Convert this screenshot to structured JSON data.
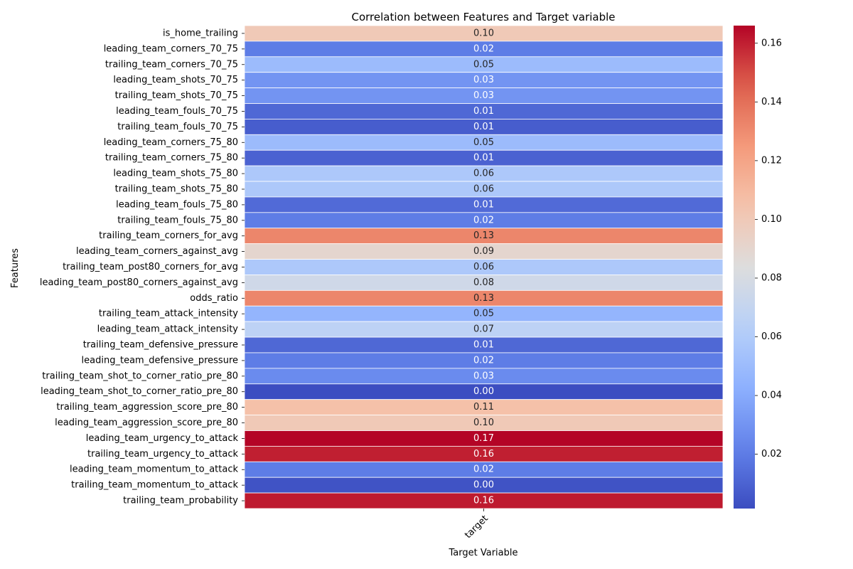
{
  "chart_data": {
    "type": "heatmap",
    "title": "Correlation between Features and Target variable",
    "xlabel": "Target Variable",
    "ylabel": "Features",
    "columns": [
      "target"
    ],
    "rows": [
      "is_home_trailing",
      "leading_team_corners_70_75",
      "trailing_team_corners_70_75",
      "leading_team_shots_70_75",
      "trailing_team_shots_70_75",
      "leading_team_fouls_70_75",
      "trailing_team_fouls_70_75",
      "leading_team_corners_75_80",
      "trailing_team_corners_75_80",
      "leading_team_shots_75_80",
      "trailing_team_shots_75_80",
      "leading_team_fouls_75_80",
      "trailing_team_fouls_75_80",
      "trailing_team_corners_for_avg",
      "leading_team_corners_against_avg",
      "trailing_team_post80_corners_for_avg",
      "leading_team_post80_corners_against_avg",
      "odds_ratio",
      "trailing_team_attack_intensity",
      "leading_team_attack_intensity",
      "trailing_team_defensive_pressure",
      "leading_team_defensive_pressure",
      "trailing_team_shot_to_corner_ratio_pre_80",
      "leading_team_shot_to_corner_ratio_pre_80",
      "trailing_team_aggression_score_pre_80",
      "leading_team_aggression_score_pre_80",
      "leading_team_urgency_to_attack",
      "trailing_team_urgency_to_attack",
      "leading_team_momentum_to_attack",
      "trailing_team_momentum_to_attack",
      "trailing_team_probability"
    ],
    "values": [
      0.1,
      0.02,
      0.05,
      0.03,
      0.03,
      0.012,
      0.008,
      0.05,
      0.01,
      0.058,
      0.058,
      0.013,
      0.02,
      0.132,
      0.09,
      0.058,
      0.076,
      0.132,
      0.046,
      0.066,
      0.012,
      0.02,
      0.026,
      0.002,
      0.106,
      0.1,
      0.166,
      0.16,
      0.02,
      0.004,
      0.161
    ],
    "labels": [
      "0.10",
      "0.02",
      "0.05",
      "0.03",
      "0.03",
      "0.01",
      "0.01",
      "0.05",
      "0.01",
      "0.06",
      "0.06",
      "0.01",
      "0.02",
      "0.13",
      "0.09",
      "0.06",
      "0.08",
      "0.13",
      "0.05",
      "0.07",
      "0.01",
      "0.02",
      "0.03",
      "0.00",
      "0.11",
      "0.10",
      "0.17",
      "0.16",
      "0.02",
      "0.00",
      "0.16"
    ],
    "colormap": "coolwarm",
    "vmin": 0.0015,
    "vmax": 0.166,
    "colorbar_ticks": [
      0.02,
      0.04,
      0.06,
      0.08,
      0.1,
      0.12,
      0.14,
      0.16
    ],
    "colorbar_tick_labels": [
      "0.02",
      "0.04",
      "0.06",
      "0.08",
      "0.10",
      "0.12",
      "0.14",
      "0.16"
    ],
    "grid_line_color": "#ffffff"
  }
}
